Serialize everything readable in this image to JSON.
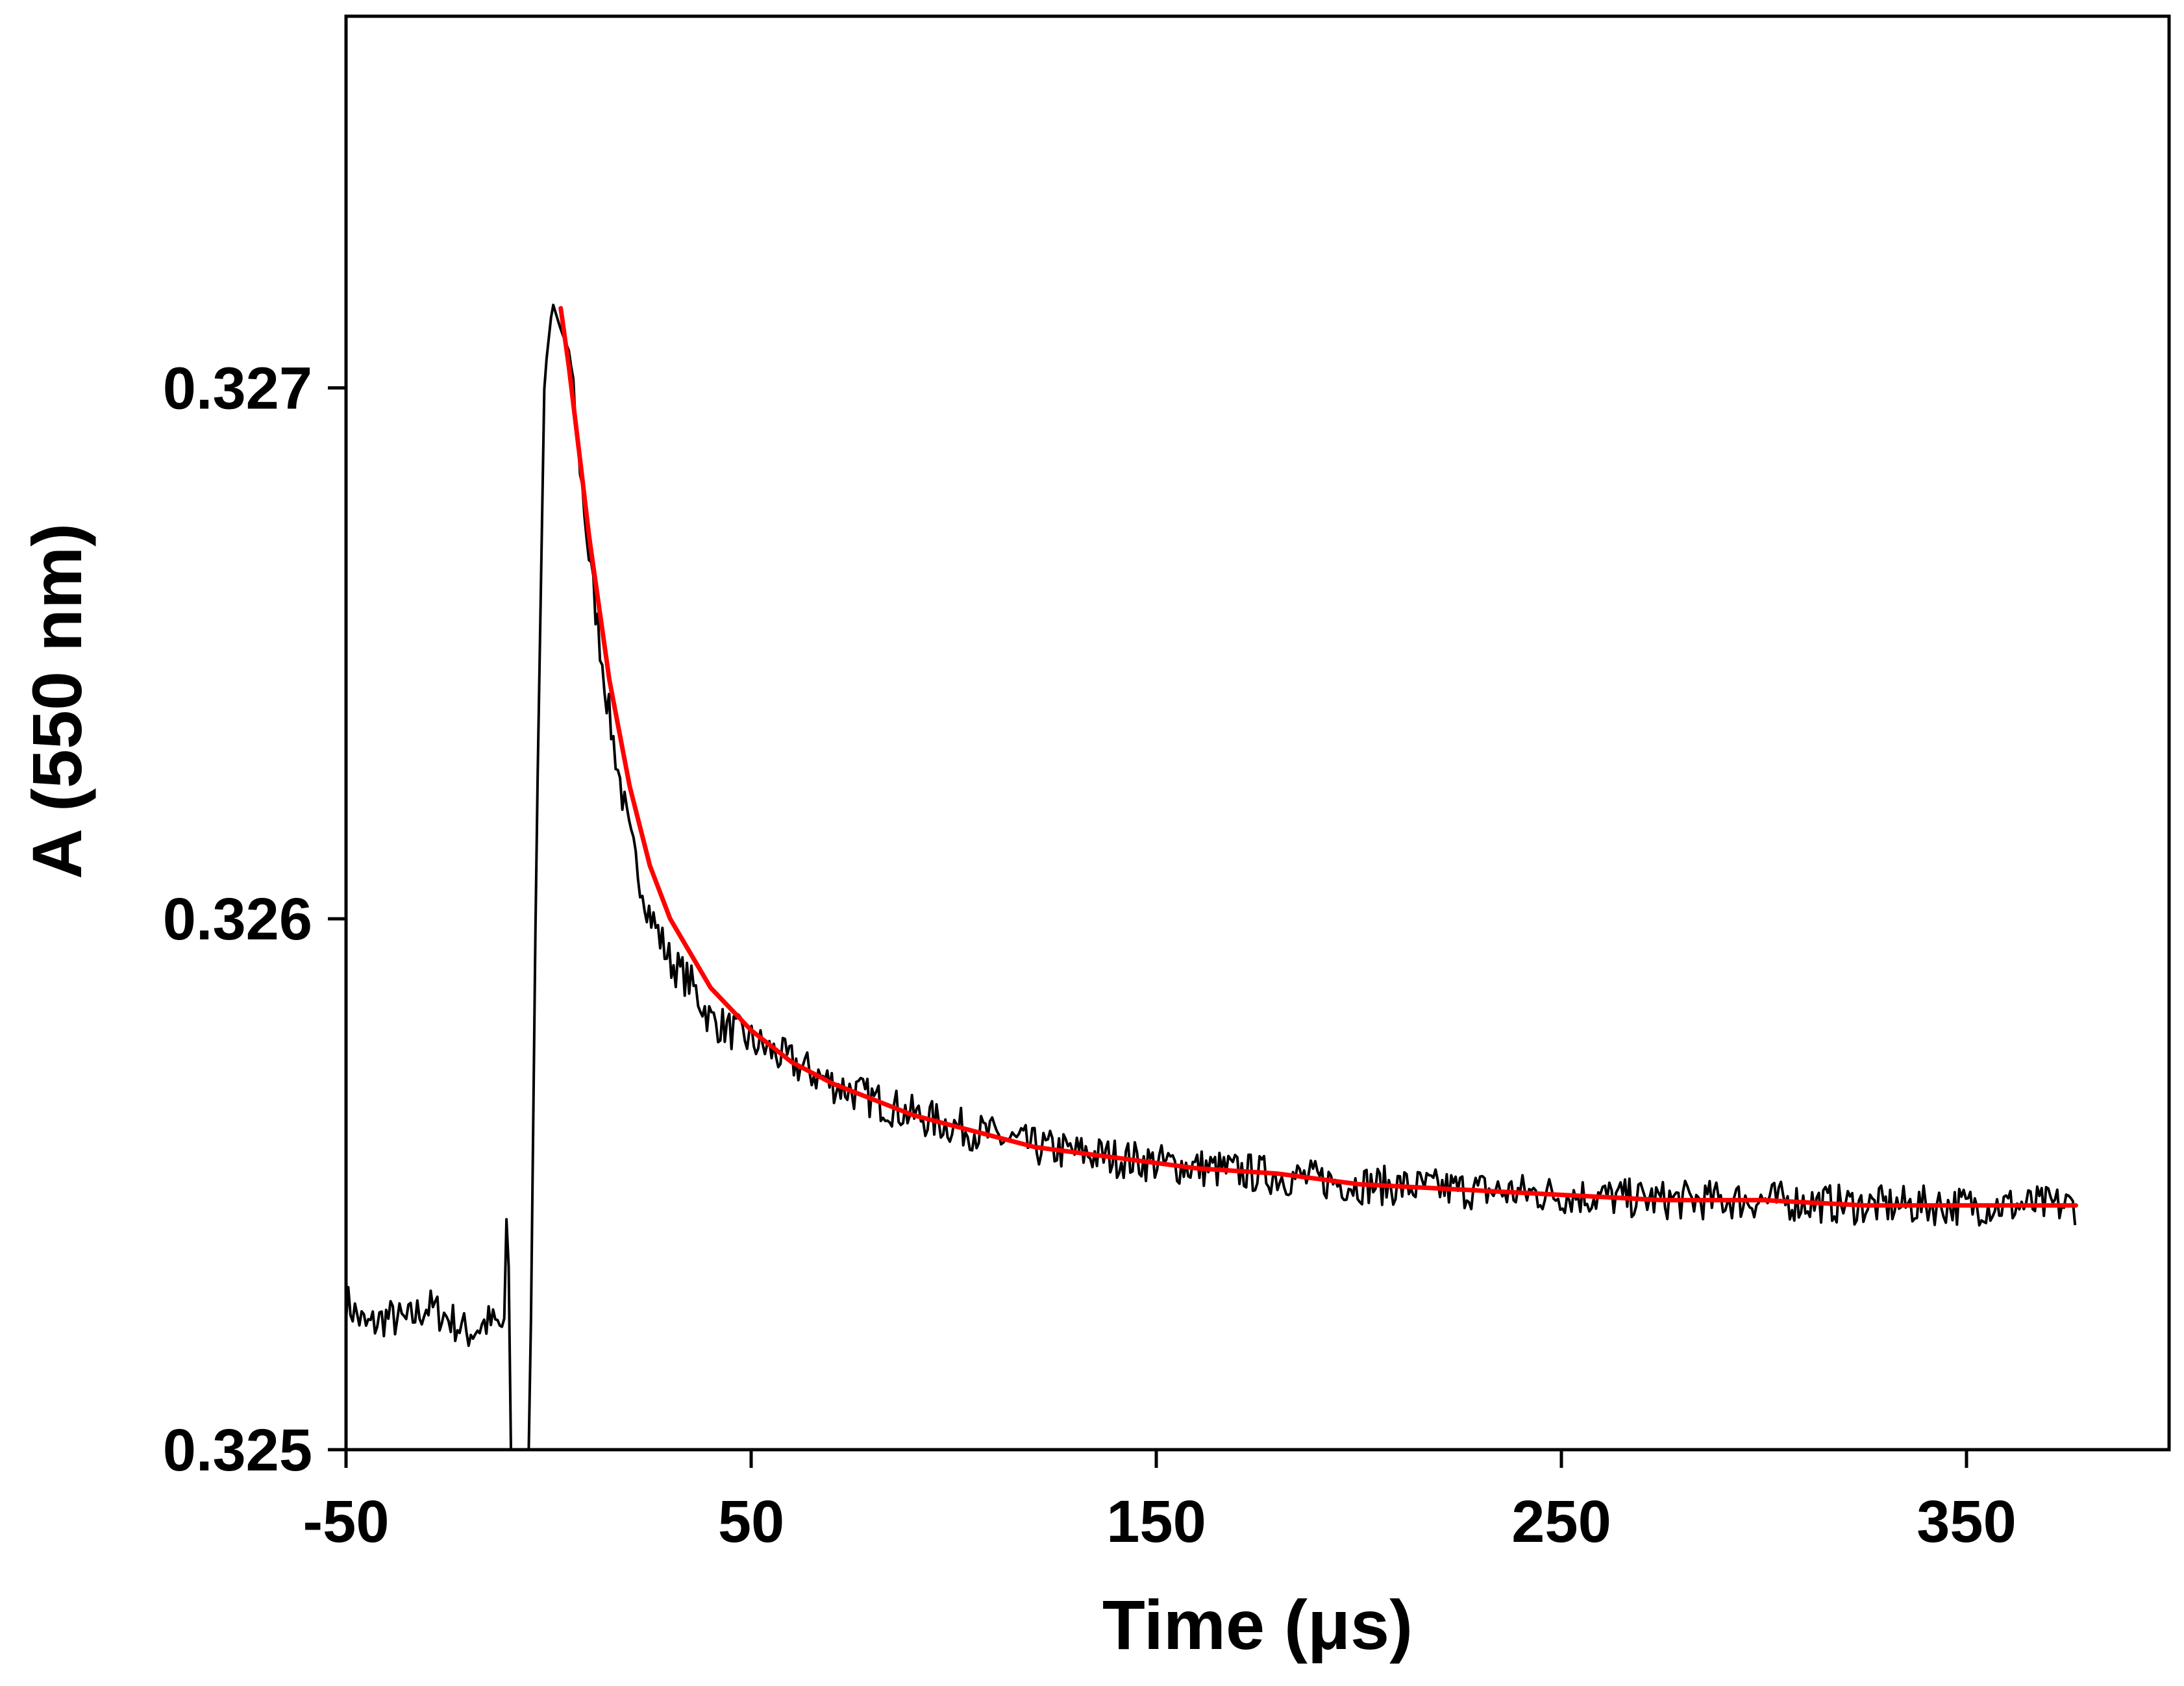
{
  "chart_data": {
    "type": "line",
    "title": "",
    "xlabel": "Time (μs)",
    "ylabel": "A (550 nm)",
    "xlim": [
      -50,
      400
    ],
    "ylim": [
      0.325,
      0.3277
    ],
    "x_ticks": [
      -50,
      50,
      150,
      250,
      350
    ],
    "x_tick_labels": [
      "-50",
      "50",
      "150",
      "250",
      "350"
    ],
    "y_ticks": [
      0.325,
      0.326,
      0.327
    ],
    "y_tick_labels": [
      "0.325",
      "0.326",
      "0.327"
    ],
    "grid": false,
    "legend": "none",
    "series": [
      {
        "kind": "measured trace",
        "color": "#000000",
        "points": [
          [
            -50,
            0.32528
          ],
          [
            -45,
            0.32523
          ],
          [
            -40,
            0.32525
          ],
          [
            -35,
            0.32524
          ],
          [
            -30,
            0.32527
          ],
          [
            -25,
            0.32525
          ],
          [
            -20,
            0.32522
          ],
          [
            -15,
            0.32524
          ],
          [
            -11,
            0.32523
          ],
          [
            -10,
            0.32557
          ],
          [
            -9.5,
            0.32482
          ],
          [
            -5,
            0.32482
          ],
          [
            -3,
            0.32614
          ],
          [
            -1,
            0.32702
          ],
          [
            1,
            0.32716
          ],
          [
            3,
            0.32711
          ],
          [
            5,
            0.32707
          ],
          [
            10,
            0.32668
          ],
          [
            15,
            0.32638
          ],
          [
            20,
            0.32615
          ],
          [
            25,
            0.32601
          ],
          [
            30,
            0.32592
          ],
          [
            35,
            0.32588
          ],
          [
            40,
            0.32581
          ],
          [
            50,
            0.32577
          ],
          [
            60,
            0.32573
          ],
          [
            70,
            0.32569
          ],
          [
            80,
            0.32566
          ],
          [
            90,
            0.32563
          ],
          [
            100,
            0.32561
          ],
          [
            120,
            0.32557
          ],
          [
            150,
            0.32554
          ],
          [
            175,
            0.32552
          ],
          [
            200,
            0.3255
          ],
          [
            225,
            0.32549
          ],
          [
            250,
            0.32548
          ],
          [
            275,
            0.32547
          ],
          [
            300,
            0.32547
          ],
          [
            325,
            0.32546
          ],
          [
            350,
            0.32546
          ],
          [
            377,
            0.32546
          ]
        ]
      },
      {
        "kind": "fit",
        "color": "#ff0000",
        "points": [
          [
            3,
            0.32715
          ],
          [
            5,
            0.32704
          ],
          [
            8,
            0.32685
          ],
          [
            10,
            0.32672
          ],
          [
            15,
            0.32645
          ],
          [
            20,
            0.32625
          ],
          [
            25,
            0.3261
          ],
          [
            30,
            0.326
          ],
          [
            40,
            0.32587
          ],
          [
            50,
            0.32579
          ],
          [
            60,
            0.32573
          ],
          [
            70,
            0.32569
          ],
          [
            80,
            0.32566
          ],
          [
            90,
            0.32563
          ],
          [
            100,
            0.32561
          ],
          [
            120,
            0.32557
          ],
          [
            140,
            0.32555
          ],
          [
            160,
            0.32553
          ],
          [
            180,
            0.32552
          ],
          [
            200,
            0.3255
          ],
          [
            225,
            0.32549
          ],
          [
            250,
            0.32548
          ],
          [
            275,
            0.32547
          ],
          [
            300,
            0.32547
          ],
          [
            325,
            0.32546
          ],
          [
            350,
            0.32546
          ],
          [
            377,
            0.32546
          ]
        ]
      }
    ]
  }
}
